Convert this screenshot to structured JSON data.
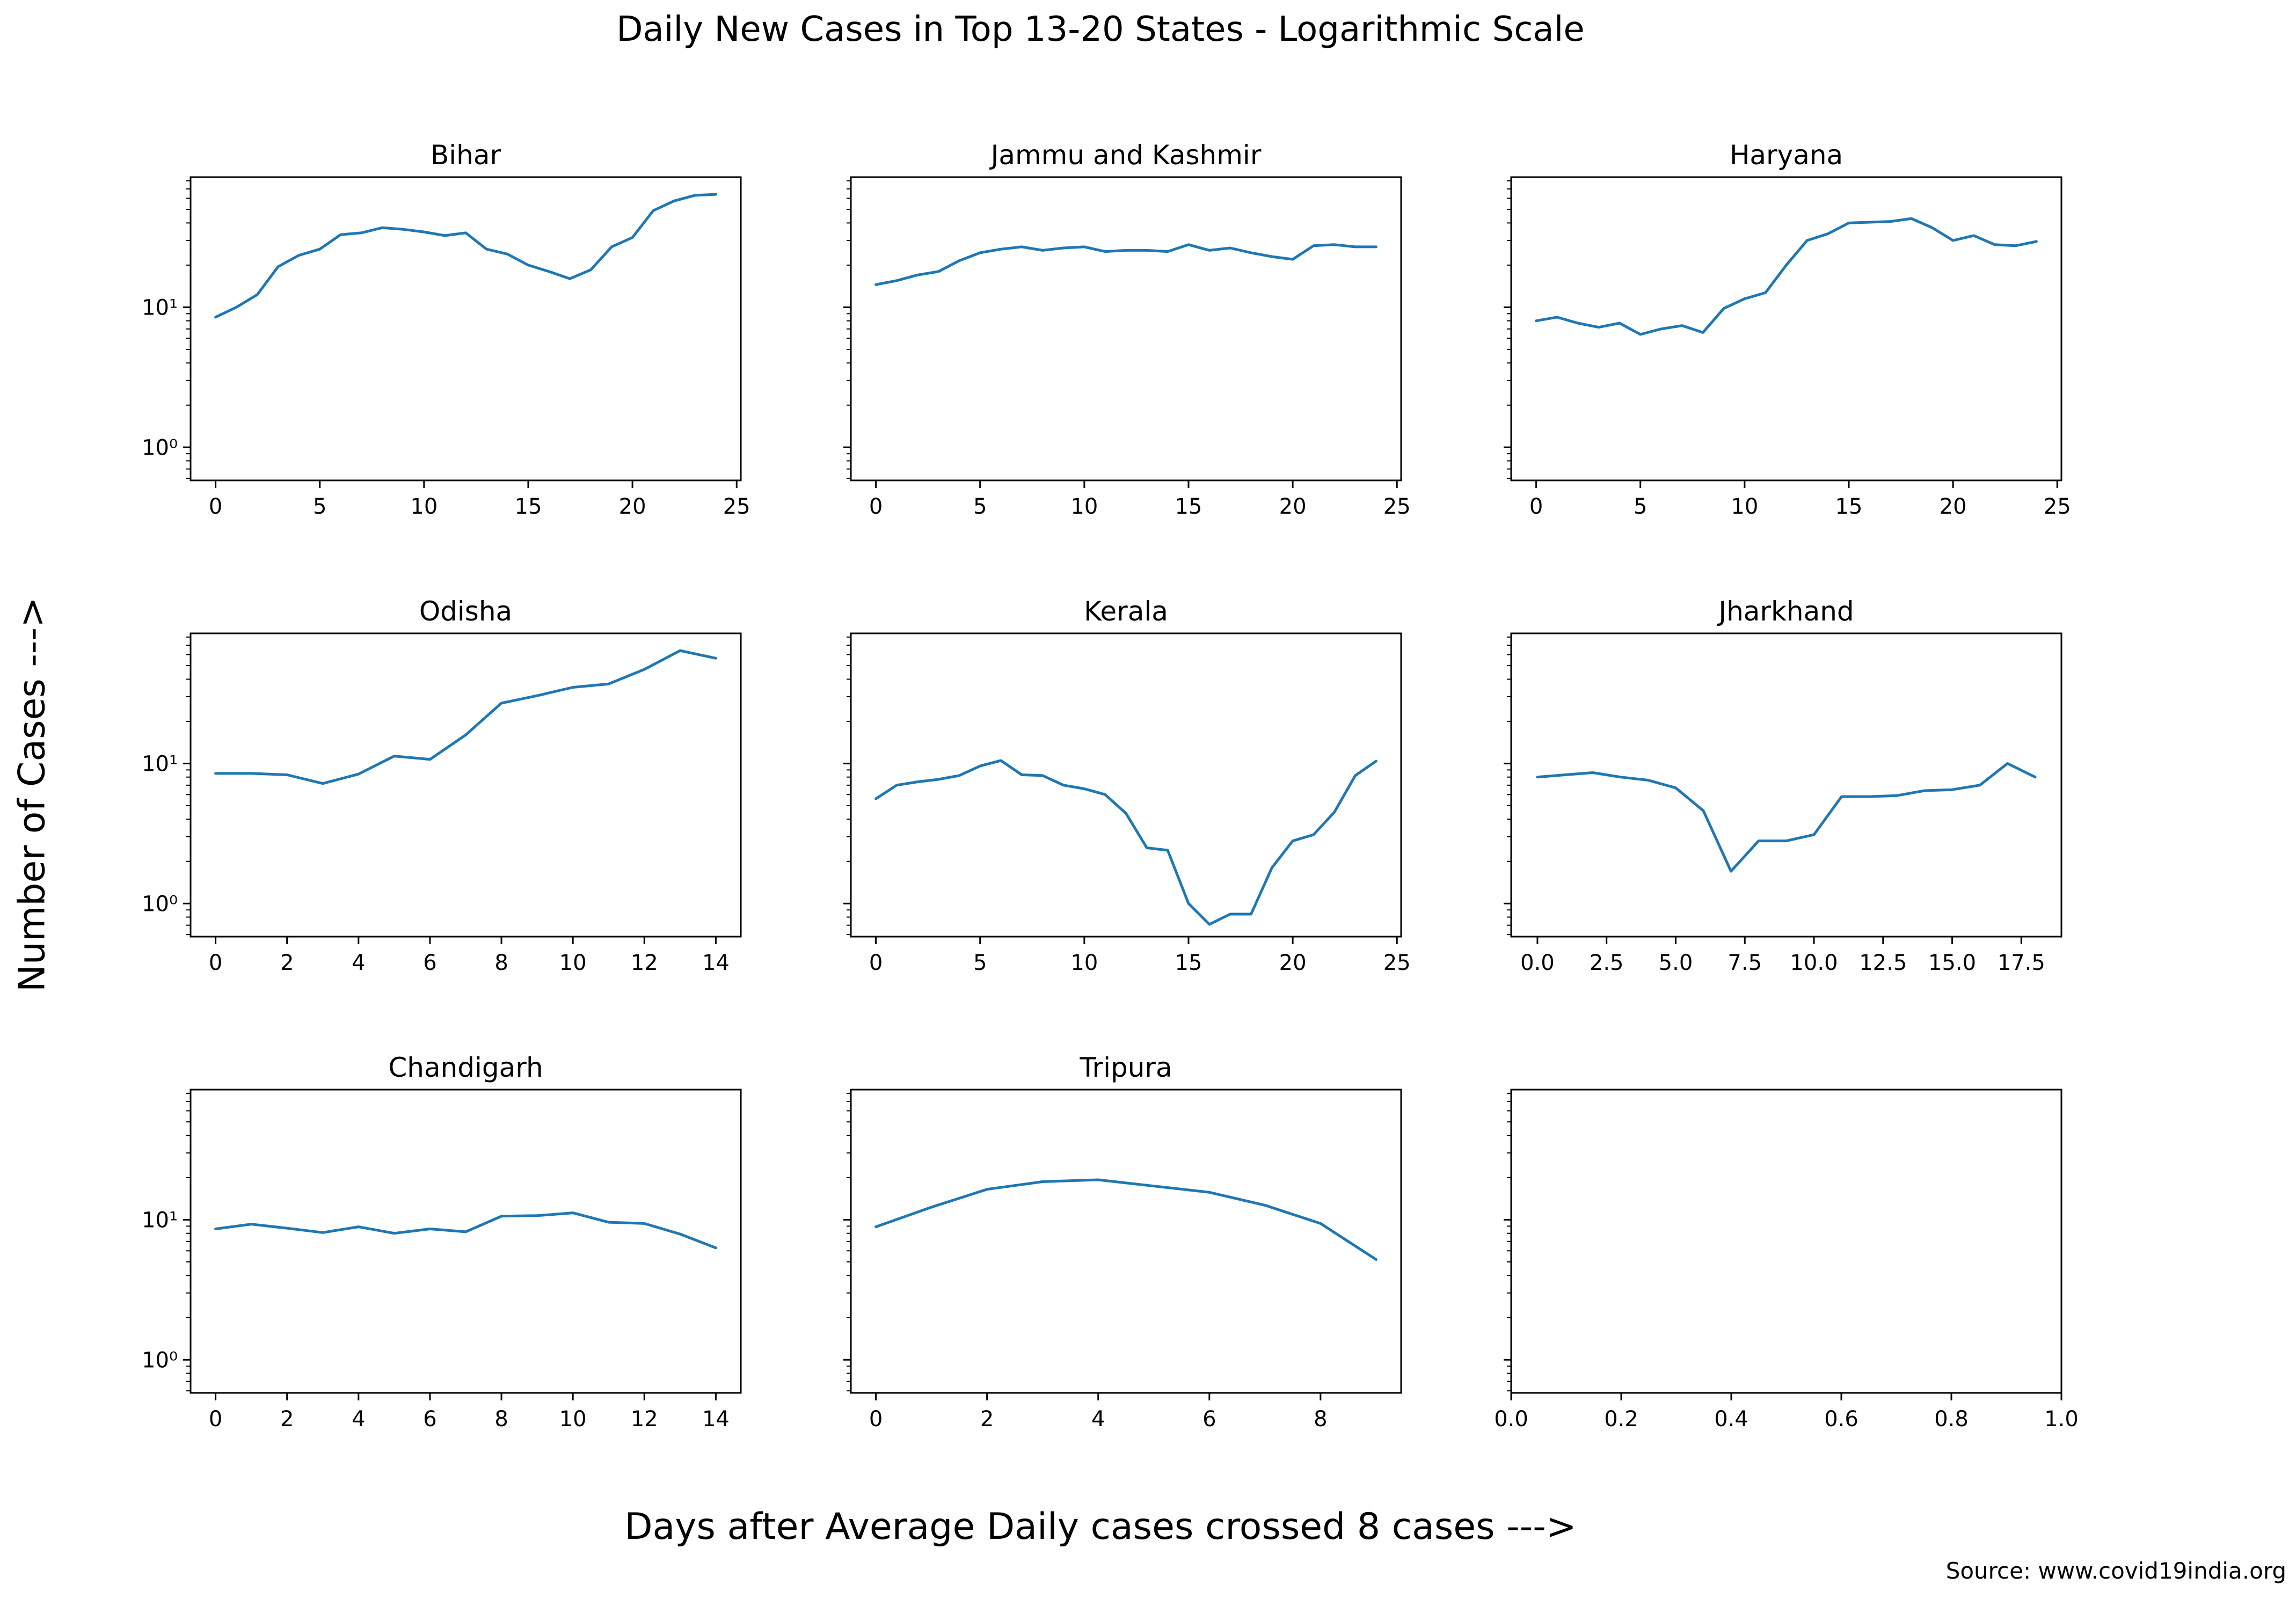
{
  "figure": {
    "title": "Daily New Cases in Top 13-20 States - Logarithmic Scale",
    "xlabel": "Days after Average Daily cases crossed 8 cases --->",
    "ylabel": "Number of Cases --->",
    "source": "Source: www.covid19india.org",
    "line_color": "#1f77b4"
  },
  "chart_data": [
    {
      "type": "line",
      "title": "Bihar",
      "yscale": "log",
      "ylim": [
        0.58,
        85
      ],
      "xlim": [
        -1.2,
        25.2
      ],
      "xticks": [
        0,
        5,
        10,
        15,
        20,
        25
      ],
      "xtick_labels": [
        "0",
        "5",
        "10",
        "15",
        "20",
        "25"
      ],
      "yticks": [
        1,
        10
      ],
      "ytick_labels": [
        "10⁰",
        "10¹"
      ],
      "show_yticklabels": true,
      "x": [
        0,
        1,
        2,
        3,
        4,
        5,
        6,
        7,
        8,
        9,
        10,
        11,
        12,
        13,
        14,
        15,
        16,
        17,
        18,
        19,
        20,
        21,
        22,
        23,
        24
      ],
      "y": [
        8.5,
        10,
        12.3,
        19.5,
        23.5,
        26,
        33,
        34,
        37,
        36,
        34.5,
        32.5,
        34,
        26,
        24,
        20,
        18,
        16,
        18.5,
        27,
        31.5,
        49,
        57.5,
        63,
        64
      ]
    },
    {
      "type": "line",
      "title": "Jammu and Kashmir",
      "yscale": "log",
      "ylim": [
        0.58,
        85
      ],
      "xlim": [
        -1.2,
        25.2
      ],
      "xticks": [
        0,
        5,
        10,
        15,
        20,
        25
      ],
      "xtick_labels": [
        "0",
        "5",
        "10",
        "15",
        "20",
        "25"
      ],
      "yticks": [
        1,
        10
      ],
      "ytick_labels": [],
      "show_yticklabels": false,
      "x": [
        0,
        1,
        2,
        3,
        4,
        5,
        6,
        7,
        8,
        9,
        10,
        11,
        12,
        13,
        14,
        15,
        16,
        17,
        18,
        19,
        20,
        21,
        22,
        23,
        24
      ],
      "y": [
        14.5,
        15.5,
        17,
        18,
        21.5,
        24.5,
        26,
        27,
        25.5,
        26.5,
        27,
        25,
        25.5,
        25.5,
        25,
        28,
        25.5,
        26.5,
        24.5,
        23,
        22,
        27.5,
        28,
        27,
        27
      ]
    },
    {
      "type": "line",
      "title": "Haryana",
      "yscale": "log",
      "ylim": [
        0.58,
        85
      ],
      "xlim": [
        -1.2,
        25.2
      ],
      "xticks": [
        0,
        5,
        10,
        15,
        20,
        25
      ],
      "xtick_labels": [
        "0",
        "5",
        "10",
        "15",
        "20",
        "25"
      ],
      "yticks": [
        1,
        10
      ],
      "ytick_labels": [],
      "show_yticklabels": false,
      "x": [
        0,
        1,
        2,
        3,
        4,
        5,
        6,
        7,
        8,
        9,
        10,
        11,
        12,
        13,
        14,
        15,
        16,
        17,
        18,
        19,
        20,
        21,
        22,
        23,
        24
      ],
      "y": [
        8,
        8.5,
        7.7,
        7.2,
        7.7,
        6.4,
        7,
        7.4,
        6.6,
        9.8,
        11.5,
        12.7,
        20,
        30,
        33.5,
        40,
        40.5,
        41,
        43,
        37,
        30,
        32.5,
        28,
        27.5,
        29.5
      ]
    },
    {
      "type": "line",
      "title": "Odisha",
      "yscale": "log",
      "ylim": [
        0.58,
        85
      ],
      "xlim": [
        -0.7,
        14.7
      ],
      "xticks": [
        0,
        2,
        4,
        6,
        8,
        10,
        12,
        14
      ],
      "xtick_labels": [
        "0",
        "2",
        "4",
        "6",
        "8",
        "10",
        "12",
        "14"
      ],
      "yticks": [
        1,
        10
      ],
      "ytick_labels": [
        "10⁰",
        "10¹"
      ],
      "show_yticklabels": true,
      "x": [
        0,
        1,
        2,
        3,
        4,
        5,
        6,
        7,
        8,
        9,
        10,
        11,
        12,
        13,
        14
      ],
      "y": [
        8.5,
        8.5,
        8.3,
        7.2,
        8.4,
        11.3,
        10.7,
        16,
        27,
        30.5,
        35,
        37,
        47,
        64,
        56.5
      ]
    },
    {
      "type": "line",
      "title": "Kerala",
      "yscale": "log",
      "ylim": [
        0.58,
        85
      ],
      "xlim": [
        -1.2,
        25.2
      ],
      "xticks": [
        0,
        5,
        10,
        15,
        20,
        25
      ],
      "xtick_labels": [
        "0",
        "5",
        "10",
        "15",
        "20",
        "25"
      ],
      "yticks": [
        1,
        10
      ],
      "ytick_labels": [],
      "show_yticklabels": false,
      "x": [
        0,
        1,
        2,
        3,
        4,
        5,
        6,
        7,
        8,
        9,
        10,
        11,
        12,
        13,
        14,
        15,
        16,
        17,
        18,
        19,
        20,
        21,
        22,
        23,
        24
      ],
      "y": [
        5.6,
        7,
        7.4,
        7.7,
        8.2,
        9.6,
        10.5,
        8.3,
        8.2,
        7,
        6.6,
        6,
        4.4,
        2.5,
        2.4,
        1,
        0.71,
        0.84,
        0.84,
        1.8,
        2.8,
        3.1,
        4.5,
        8.2,
        10.4
      ]
    },
    {
      "type": "line",
      "title": "Jharkhand",
      "yscale": "log",
      "ylim": [
        0.58,
        85
      ],
      "xlim": [
        -0.95,
        18.95
      ],
      "xticks": [
        0,
        2.5,
        5,
        7.5,
        10,
        12.5,
        15,
        17.5
      ],
      "xtick_labels": [
        "0.0",
        "2.5",
        "5.0",
        "7.5",
        "10.0",
        "12.5",
        "15.0",
        "17.5"
      ],
      "yticks": [
        1,
        10
      ],
      "ytick_labels": [],
      "show_yticklabels": false,
      "x": [
        0,
        1,
        2,
        3,
        4,
        5,
        6,
        7,
        8,
        9,
        10,
        11,
        12,
        13,
        14,
        15,
        16,
        17,
        18
      ],
      "y": [
        8,
        8.3,
        8.6,
        8,
        7.6,
        6.7,
        4.6,
        1.7,
        2.8,
        2.8,
        3.1,
        5.8,
        5.8,
        5.9,
        6.4,
        6.5,
        7,
        10,
        8
      ]
    },
    {
      "type": "line",
      "title": "Chandigarh",
      "yscale": "log",
      "ylim": [
        0.58,
        85
      ],
      "xlim": [
        -0.7,
        14.7
      ],
      "xticks": [
        0,
        2,
        4,
        6,
        8,
        10,
        12,
        14
      ],
      "xtick_labels": [
        "0",
        "2",
        "4",
        "6",
        "8",
        "10",
        "12",
        "14"
      ],
      "yticks": [
        1,
        10
      ],
      "ytick_labels": [
        "10⁰",
        "10¹"
      ],
      "show_yticklabels": true,
      "x": [
        0,
        1,
        2,
        3,
        4,
        5,
        6,
        7,
        8,
        9,
        10,
        11,
        12,
        13,
        14
      ],
      "y": [
        8.6,
        9.3,
        8.7,
        8.1,
        8.9,
        8,
        8.6,
        8.2,
        10.6,
        10.7,
        11.2,
        9.6,
        9.4,
        7.9,
        6.3
      ]
    },
    {
      "type": "line",
      "title": "Tripura",
      "yscale": "log",
      "ylim": [
        0.58,
        85
      ],
      "xlim": [
        -0.45,
        9.45
      ],
      "xticks": [
        0,
        2,
        4,
        6,
        8
      ],
      "xtick_labels": [
        "0",
        "2",
        "4",
        "6",
        "8"
      ],
      "yticks": [
        1,
        10
      ],
      "ytick_labels": [],
      "show_yticklabels": false,
      "x": [
        0,
        1,
        2,
        3,
        4,
        5,
        6,
        7,
        8,
        9
      ],
      "y": [
        8.9,
        12.3,
        16.5,
        18.7,
        19.3,
        17.4,
        15.7,
        12.7,
        9.4,
        5.2
      ]
    },
    {
      "type": "line",
      "title": "",
      "yscale": "log",
      "ylim": [
        0.58,
        85
      ],
      "xlim": [
        0,
        1
      ],
      "xticks": [
        0,
        0.2,
        0.4,
        0.6,
        0.8,
        1.0
      ],
      "xtick_labels": [
        "0.0",
        "0.2",
        "0.4",
        "0.6",
        "0.8",
        "1.0"
      ],
      "yticks": [
        1,
        10
      ],
      "ytick_labels": [],
      "show_yticklabels": false,
      "x": [],
      "y": []
    }
  ]
}
